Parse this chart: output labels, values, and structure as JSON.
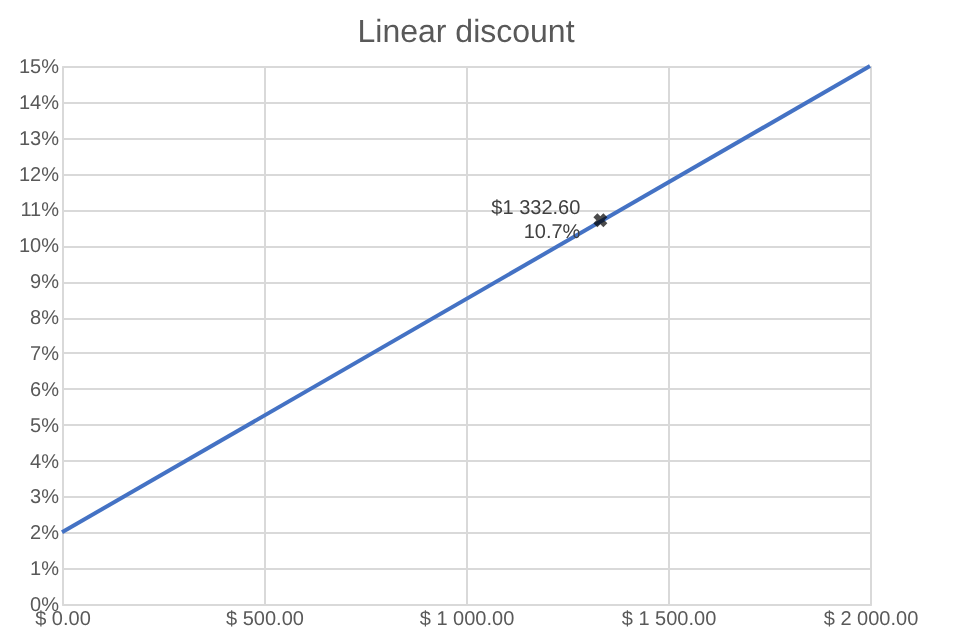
{
  "chart_data": {
    "type": "line",
    "title": "Linear discount",
    "series": [
      {
        "color": "#4472c4",
        "x": [
          0,
          2000
        ],
        "values": [
          2,
          15
        ],
        "marker": "none",
        "line_style": "solid"
      },
      {
        "type": "scatter",
        "color": "#000000",
        "x": [
          1332.6
        ],
        "values": [
          10.7
        ],
        "marker": "cross"
      }
    ],
    "annotations": [
      {
        "text": "$1 332.60\n10.7%",
        "x": 1332.6,
        "y": 10.7
      }
    ],
    "xlim": [
      0,
      2000
    ],
    "xticks": [
      {
        "value": 0,
        "label": "$ 0.00"
      },
      {
        "value": 500,
        "label": "$ 500.00"
      },
      {
        "value": 1000,
        "label": "$ 1 000.00"
      },
      {
        "value": 1500,
        "label": "$ 1 500.00"
      },
      {
        "value": 2000,
        "label": "$ 2 000.00"
      }
    ],
    "ylim": [
      0,
      15
    ],
    "yticks": [
      {
        "value": 0,
        "label": "0%"
      },
      {
        "value": 1,
        "label": "1%"
      },
      {
        "value": 2,
        "label": "2%"
      },
      {
        "value": 3,
        "label": "3%"
      },
      {
        "value": 4,
        "label": "4%"
      },
      {
        "value": 5,
        "label": "5%"
      },
      {
        "value": 6,
        "label": "6%"
      },
      {
        "value": 7,
        "label": "7%"
      },
      {
        "value": 8,
        "label": "8%"
      },
      {
        "value": 9,
        "label": "9%"
      },
      {
        "value": 10,
        "label": "10%"
      },
      {
        "value": 11,
        "label": "11%"
      },
      {
        "value": 12,
        "label": "12%"
      },
      {
        "value": 13,
        "label": "13%"
      },
      {
        "value": 14,
        "label": "14%"
      },
      {
        "value": 15,
        "label": "15%"
      }
    ],
    "grid": true
  }
}
